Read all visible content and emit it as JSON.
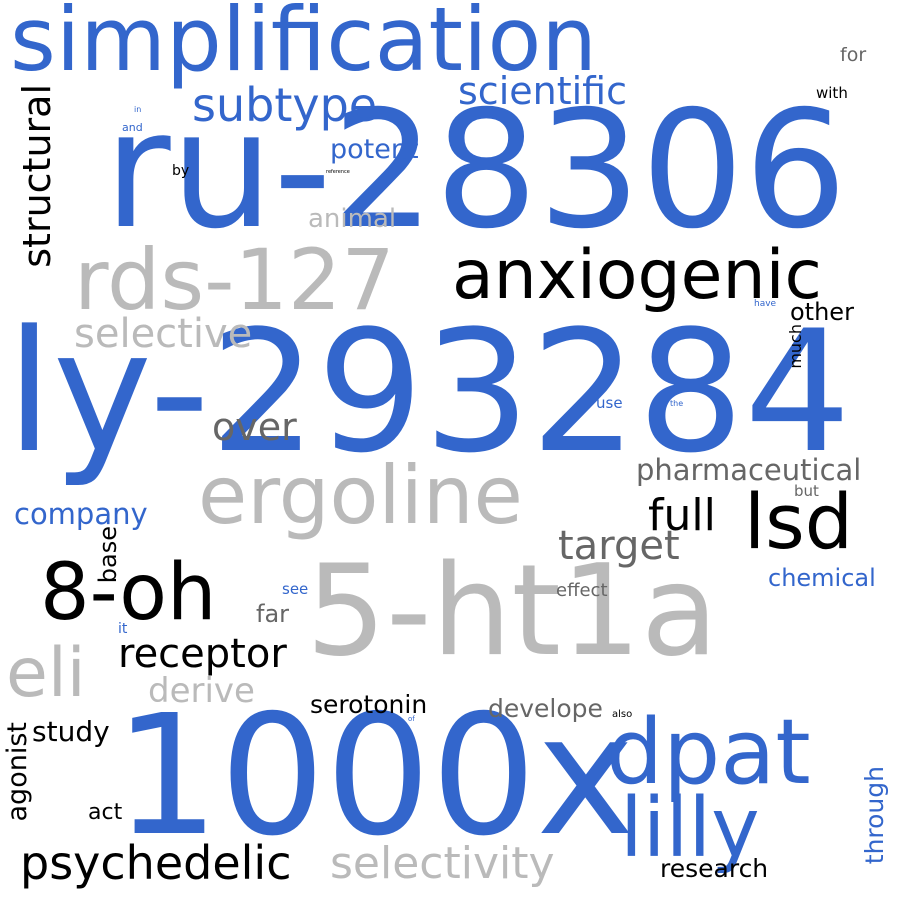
{
  "words": [
    {
      "key": "simplification",
      "text": "simplification",
      "color": "#3366cc"
    },
    {
      "key": "ru_28306",
      "text": "ru-28306",
      "color": "#3366cc"
    },
    {
      "key": "ly_293284",
      "text": "ly-293284",
      "color": "#3366cc"
    },
    {
      "key": "ht1a",
      "text": "5-ht1a",
      "color": "#bababa"
    },
    {
      "key": "x1000",
      "text": "1000x",
      "color": "#3366cc"
    },
    {
      "key": "rds_127",
      "text": "rds-127",
      "color": "#bababa"
    },
    {
      "key": "anxiogenic",
      "text": "anxiogenic",
      "color": "#000000"
    },
    {
      "key": "ergoline",
      "text": "ergoline",
      "color": "#bababa"
    },
    {
      "key": "oh8",
      "text": "8-oh",
      "color": "#000000"
    },
    {
      "key": "dpat",
      "text": "dpat",
      "color": "#3366cc"
    },
    {
      "key": "lilly",
      "text": "lilly",
      "color": "#3366cc"
    },
    {
      "key": "lsd",
      "text": "lsd",
      "color": "#000000"
    },
    {
      "key": "eli",
      "text": "eli",
      "color": "#bababa"
    },
    {
      "key": "subtype",
      "text": "subtype",
      "color": "#3366cc"
    },
    {
      "key": "structural",
      "text": "structural",
      "color": "#000000"
    },
    {
      "key": "scientific",
      "text": "scientific",
      "color": "#3366cc"
    },
    {
      "key": "selective",
      "text": "selective",
      "color": "#bababa"
    },
    {
      "key": "over",
      "text": "over",
      "color": "#666666"
    },
    {
      "key": "potent",
      "text": "potent",
      "color": "#3366cc"
    },
    {
      "key": "animal",
      "text": "animal",
      "color": "#bababa"
    },
    {
      "key": "pharmaceutical",
      "text": "pharmaceutical",
      "color": "#666666"
    },
    {
      "key": "full",
      "text": "full",
      "color": "#000000"
    },
    {
      "key": "target",
      "text": "target",
      "color": "#666666"
    },
    {
      "key": "receptor",
      "text": "receptor",
      "color": "#000000"
    },
    {
      "key": "derive",
      "text": "derive",
      "color": "#bababa"
    },
    {
      "key": "psychedelic",
      "text": "psychedelic",
      "color": "#000000"
    },
    {
      "key": "selectivity",
      "text": "selectivity",
      "color": "#bababa"
    },
    {
      "key": "company",
      "text": "company",
      "color": "#3366cc"
    },
    {
      "key": "chemical",
      "text": "chemical",
      "color": "#3366cc"
    },
    {
      "key": "serotonin",
      "text": "serotonin",
      "color": "#000000"
    },
    {
      "key": "develope",
      "text": "develope",
      "color": "#666666"
    },
    {
      "key": "study",
      "text": "study",
      "color": "#000000"
    },
    {
      "key": "agonist",
      "text": "agonist",
      "color": "#000000"
    },
    {
      "key": "research",
      "text": "research",
      "color": "#000000"
    },
    {
      "key": "through",
      "text": "through",
      "color": "#3366cc"
    },
    {
      "key": "other",
      "text": "other",
      "color": "#000000"
    },
    {
      "key": "base",
      "text": "base",
      "color": "#000000"
    },
    {
      "key": "far",
      "text": "far",
      "color": "#666666"
    },
    {
      "key": "act",
      "text": "act",
      "color": "#000000"
    },
    {
      "key": "effect",
      "text": "effect",
      "color": "#666666"
    },
    {
      "key": "for",
      "text": "for",
      "color": "#666666"
    },
    {
      "key": "with",
      "text": "with",
      "color": "#000000"
    },
    {
      "key": "much",
      "text": "much",
      "color": "#000000"
    },
    {
      "key": "but",
      "text": "but",
      "color": "#666666"
    },
    {
      "key": "use",
      "text": "use",
      "color": "#3366cc"
    },
    {
      "key": "see",
      "text": "see",
      "color": "#3366cc"
    },
    {
      "key": "it",
      "text": "it",
      "color": "#3366cc"
    },
    {
      "key": "by",
      "text": "by",
      "color": "#000000"
    },
    {
      "key": "and",
      "text": "and",
      "color": "#3366cc"
    },
    {
      "key": "in",
      "text": "in",
      "color": "#3366cc"
    },
    {
      "key": "reference",
      "text": "reference",
      "color": "#000000"
    },
    {
      "key": "have",
      "text": "have",
      "color": "#3366cc"
    },
    {
      "key": "the",
      "text": "the",
      "color": "#3366cc"
    },
    {
      "key": "also",
      "text": "also",
      "color": "#000000"
    },
    {
      "key": "of",
      "text": "of",
      "color": "#3366cc"
    }
  ]
}
